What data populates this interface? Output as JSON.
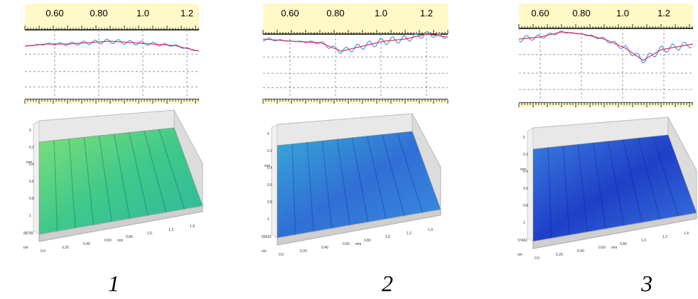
{
  "panels": [
    {
      "label": "1",
      "profile_ticks": [
        "0.60",
        "0.80",
        "1.0",
        "1.2"
      ],
      "surface": {
        "z_max": "96799",
        "z_unit": "nm",
        "unit": "mm",
        "x_axis": [
          "0.0",
          "0.20",
          "0.40",
          "0.60",
          "0.80",
          "1.0",
          "1.2",
          "1.4"
        ],
        "y_axis": [
          "0",
          "0.2",
          "0.4",
          "0.6",
          "0.8",
          "1"
        ]
      }
    },
    {
      "label": "2",
      "profile_ticks": [
        "0.60",
        "0.80",
        "1.0",
        "1.2"
      ],
      "surface": {
        "z_max": "65632",
        "z_unit": "nm",
        "unit": "mm",
        "x_axis": [
          "0.0",
          "0.20",
          "0.40",
          "0.60",
          "0.80",
          "1.0",
          "1.2",
          "1.4"
        ],
        "y_axis": [
          "0",
          "0.2",
          "0.4",
          "0.6",
          "0.8",
          "1"
        ]
      }
    },
    {
      "label": "3",
      "profile_ticks": [
        "0.60",
        "0.80",
        "1.0",
        "1.2"
      ],
      "surface": {
        "z_max": "37462",
        "z_unit": "nm",
        "unit": "mm",
        "x_axis": [
          "0.0",
          "0.20",
          "0.40",
          "0.60",
          "0.80",
          "1.0",
          "1.2",
          "1.4"
        ],
        "y_axis": [
          "0",
          "0.2",
          "0.4",
          "0.6",
          "0.8",
          "1"
        ]
      }
    }
  ]
}
